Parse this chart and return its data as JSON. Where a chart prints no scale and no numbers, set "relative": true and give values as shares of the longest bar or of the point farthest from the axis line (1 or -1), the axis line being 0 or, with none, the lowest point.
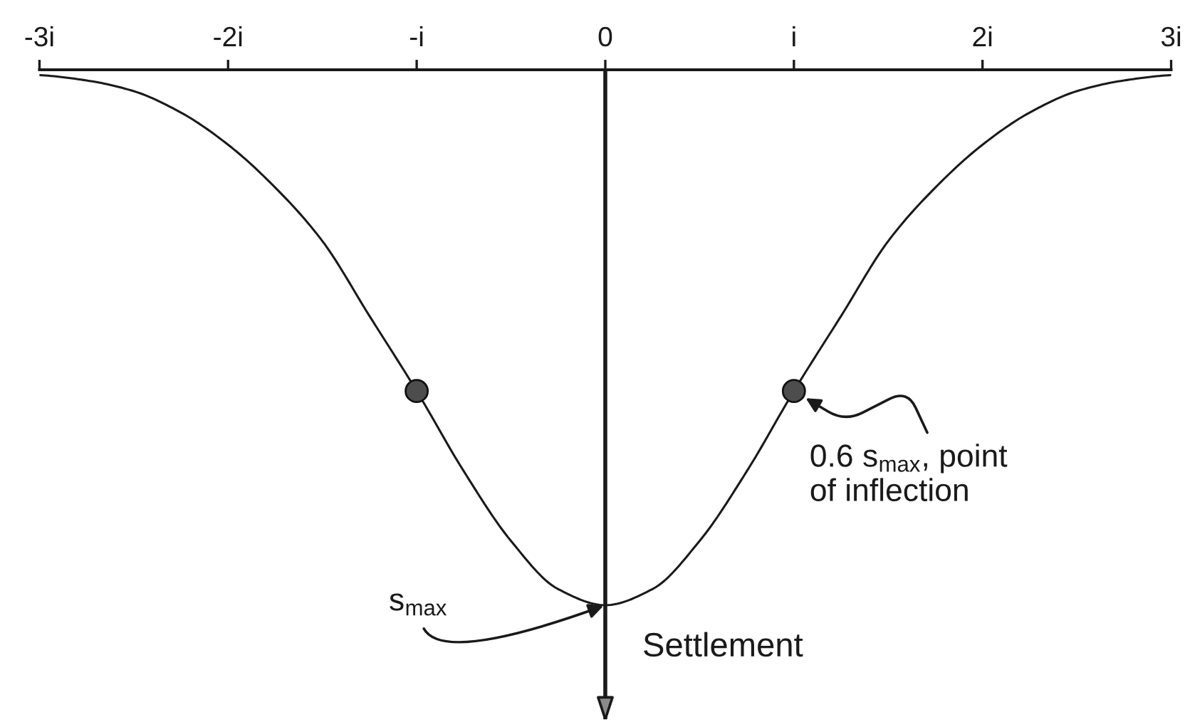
{
  "chart_data": {
    "type": "line",
    "relative": true,
    "xlim": [
      -3,
      3
    ],
    "xticks": [
      {
        "value": -3,
        "label": "-3i"
      },
      {
        "value": -2,
        "label": "-2i"
      },
      {
        "value": -1,
        "label": "-i"
      },
      0,
      {
        "value": 1,
        "label": "i"
      },
      {
        "value": 2,
        "label": "2i"
      },
      {
        "value": 3,
        "label": "3i"
      }
    ],
    "tick_labels": "x",
    "series": [
      {
        "color": "#1a1a1a",
        "marker": "none",
        "line_style": "solid",
        "x": [
          -3,
          -2.75,
          -2.5,
          -2.25,
          -2,
          -1.75,
          -1.5,
          -1.25,
          -1,
          -0.75,
          -0.5,
          -0.25,
          0,
          0.25,
          0.5,
          0.75,
          1,
          1.25,
          1.5,
          1.75,
          2,
          2.25,
          2.5,
          2.75,
          3
        ],
        "values": [
          -0.01,
          -0.02,
          -0.04,
          -0.08,
          -0.14,
          -0.22,
          -0.32,
          -0.46,
          -0.6,
          -0.75,
          -0.88,
          -0.97,
          -1,
          -0.97,
          -0.88,
          -0.75,
          -0.6,
          -0.46,
          -0.32,
          -0.22,
          -0.14,
          -0.08,
          -0.04,
          -0.02,
          -0.01
        ]
      },
      {
        "type": "scatter",
        "color": "#4d4d4d",
        "marker": "circle",
        "x": [
          -1,
          1
        ],
        "values": [
          -0.6,
          -0.6
        ]
      }
    ],
    "ref_lines": [
      {
        "axis": "x",
        "value": 0,
        "label": "Settlement",
        "color": "#1a1a1a",
        "line_style": "solid"
      }
    ],
    "annotations": [
      {
        "text": "s$_{max}$",
        "x": 0,
        "y": -1
      },
      {
        "text": "0.6 s$_{max}$, point\nof inflection",
        "x": 1,
        "y": -0.6
      }
    ],
    "grid": false
  }
}
